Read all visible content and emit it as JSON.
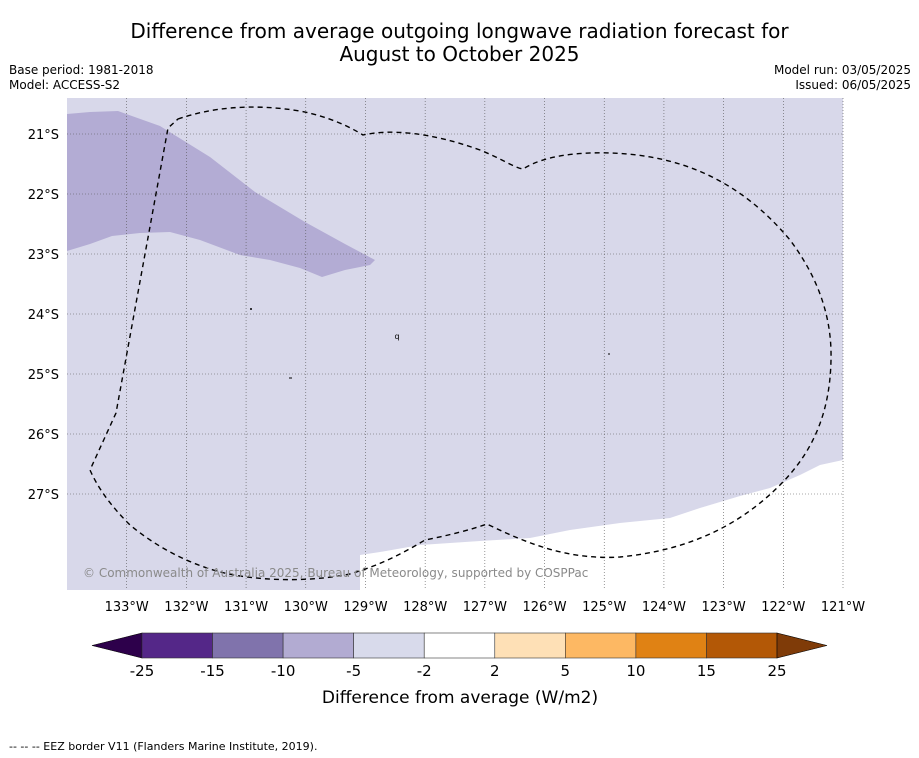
{
  "title": {
    "line1": "Difference from average outgoing longwave radiation forecast for",
    "line2": "August to October 2025"
  },
  "meta": {
    "base_period": "Base period: 1981-2018",
    "model": "Model: ACCESS-S2",
    "model_run": "Model run: 03/05/2025",
    "issued": "Issued: 06/05/2025"
  },
  "map": {
    "lon_range": [
      -134.0,
      -121.0
    ],
    "lat_range": [
      -28.6,
      -20.4
    ],
    "lon_ticks": [
      -133,
      -132,
      -131,
      -130,
      -129,
      -128,
      -127,
      -126,
      -125,
      -124,
      -123,
      -122,
      -121
    ],
    "lat_ticks": [
      -21,
      -22,
      -23,
      -24,
      -25,
      -26,
      -27
    ],
    "lon_labels": [
      "133°W",
      "132°W",
      "131°W",
      "130°W",
      "129°W",
      "128°W",
      "127°W",
      "126°W",
      "125°W",
      "124°W",
      "123°W",
      "122°W",
      "121°W"
    ],
    "lat_labels": [
      "21°S",
      "22°S",
      "23°S",
      "24°S",
      "25°S",
      "26°S",
      "27°S"
    ],
    "copyright": "© Commonwealth of Australia 2025, Bureau of Meteorology, supported by COSPPac",
    "island_marker": "q",
    "background_class_color": "#d8d8ea",
    "anomaly_class_color": "#b3acd4",
    "no_data_color": "#ffffff"
  },
  "colorbar": {
    "tick_labels": [
      "-25",
      "-15",
      "-10",
      "-5",
      "-2",
      "2",
      "5",
      "10",
      "15",
      "25"
    ],
    "label": "Difference from average (W/m2)",
    "under_color": "#2d004b",
    "over_color": "#7f3b08",
    "colors": [
      "#542788",
      "#8073ac",
      "#b2abd2",
      "#d8daeb",
      "#ffffff",
      "#fee0b6",
      "#fdb863",
      "#e08214",
      "#b35806"
    ]
  },
  "footnote": "--  --  -- EEZ border V11 (Flanders Marine Institute, 2019)."
}
